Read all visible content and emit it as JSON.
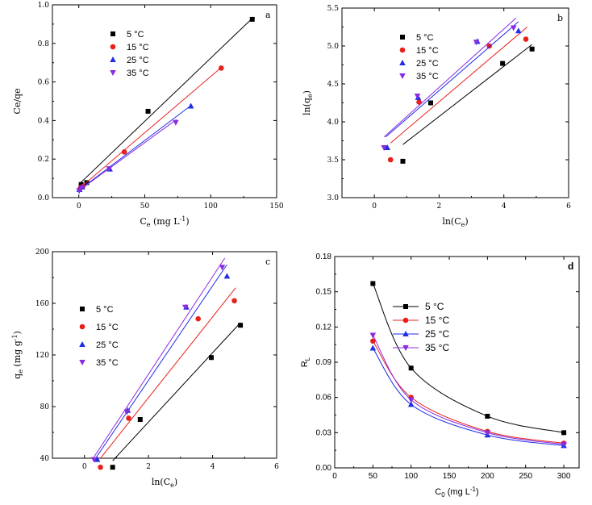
{
  "series_styles": [
    {
      "name": "5 °C",
      "color": "#000000",
      "marker": "square"
    },
    {
      "name": "15 °C",
      "color": "#e8201c",
      "marker": "circle"
    },
    {
      "name": "25 °C",
      "color": "#1e2ee6",
      "marker": "triangle-up"
    },
    {
      "name": "35 °C",
      "color": "#8a2be2",
      "marker": "triangle-down"
    }
  ],
  "chart_data": [
    {
      "type": "scatter",
      "panel_label": "a",
      "xlabel_main": "C",
      "xlabel_sub": "e",
      "xlabel_rest": " (mg L",
      "xlabel_sup": "-1",
      "xlabel_end": ")",
      "ylabel": "Ce/qe",
      "xlim": [
        -20,
        150
      ],
      "ylim": [
        0,
        1.0
      ],
      "xticks": [
        0,
        50,
        100,
        150
      ],
      "yticks": [
        0.0,
        0.2,
        0.4,
        0.6,
        0.8,
        1.0
      ],
      "ytick_labels": [
        "0.0",
        "0.2",
        "0.4",
        "0.6",
        "0.8",
        "1.0"
      ],
      "legend_position": "top-left",
      "series": [
        {
          "name": "5 °C",
          "x": [
            1.8,
            6.0,
            52.5,
            131.5
          ],
          "y": [
            0.068,
            0.078,
            0.448,
            0.925
          ],
          "fit": [
            [
              1.0,
              0.075
            ],
            [
              131.5,
              0.93
            ]
          ]
        },
        {
          "name": "15 °C",
          "x": [
            1.2,
            3.0,
            34.5,
            108.0
          ],
          "y": [
            0.05,
            0.058,
            0.237,
            0.672
          ],
          "fit": [
            [
              0.5,
              0.048
            ],
            [
              108.5,
              0.678
            ]
          ]
        },
        {
          "name": "25 °C",
          "x": [
            0.5,
            2.5,
            23.5,
            85.0
          ],
          "y": [
            0.042,
            0.055,
            0.148,
            0.475
          ],
          "fit": [
            [
              0.0,
              0.038
            ],
            [
              85.5,
              0.48
            ]
          ]
        },
        {
          "name": "35 °C",
          "x": [
            0.3,
            2.0,
            23.0,
            73.5
          ],
          "y": [
            0.036,
            0.05,
            0.15,
            0.39
          ],
          "fit": [
            [
              0.0,
              0.036
            ],
            [
              74.0,
              0.405
            ]
          ]
        }
      ]
    },
    {
      "type": "scatter",
      "panel_label": "b",
      "xlabel_main": "ln(C",
      "xlabel_sub": "e",
      "xlabel_rest": ")",
      "xlabel_sup": "",
      "xlabel_end": "",
      "ylabel": "ln(q",
      "ylabel_sub": "e",
      "ylabel_end": ")",
      "xlim": [
        -1,
        6
      ],
      "ylim": [
        3.0,
        5.5
      ],
      "xticks": [
        0,
        2,
        4,
        6
      ],
      "yticks": [
        3.0,
        3.5,
        4.0,
        4.5,
        5.0,
        5.5
      ],
      "ytick_labels": [
        "3.0",
        "3.5",
        "4.0",
        "4.5",
        "5.0",
        "5.5"
      ],
      "legend_position": "top-left",
      "series": [
        {
          "name": "5 °C",
          "x": [
            0.88,
            1.74,
            3.96,
            4.87
          ],
          "y": [
            3.48,
            4.25,
            4.77,
            4.96
          ],
          "fit": [
            [
              0.88,
              3.7
            ],
            [
              4.87,
              5.02
            ]
          ]
        },
        {
          "name": "15 °C",
          "x": [
            0.5,
            1.38,
            3.55,
            4.68
          ],
          "y": [
            3.5,
            4.26,
            5.0,
            5.09
          ],
          "fit": [
            [
              0.5,
              3.72
            ],
            [
              4.72,
              5.25
            ]
          ]
        },
        {
          "name": "25 °C",
          "x": [
            0.4,
            1.35,
            3.18,
            4.45
          ],
          "y": [
            3.66,
            4.32,
            5.06,
            5.2
          ],
          "fit": [
            [
              0.35,
              3.8
            ],
            [
              4.45,
              5.32
            ]
          ]
        },
        {
          "name": "35 °C",
          "x": [
            0.3,
            1.33,
            3.15,
            4.3
          ],
          "y": [
            3.66,
            4.34,
            5.05,
            5.24
          ],
          "fit": [
            [
              0.3,
              3.8
            ],
            [
              4.38,
              5.37
            ]
          ]
        }
      ]
    },
    {
      "type": "scatter",
      "panel_label": "c",
      "xlabel_main": "ln(C",
      "xlabel_sub": "e",
      "xlabel_rest": ")",
      "xlabel_sup": "",
      "xlabel_end": "",
      "ylabel": "q",
      "ylabel_sub": "e",
      "ylabel_end": " (mg g",
      "ylabel_sup": "-1",
      "ylabel_close": ")",
      "xlim": [
        -1,
        6
      ],
      "ylim": [
        40,
        200
      ],
      "xticks": [
        0,
        2,
        4,
        6
      ],
      "yticks": [
        40,
        80,
        120,
        160,
        200
      ],
      "ytick_labels": [
        "40",
        "80",
        "120",
        "160",
        "200"
      ],
      "legend_position": "center-left",
      "series": [
        {
          "name": "5 °C",
          "x": [
            0.88,
            1.74,
            3.96,
            4.87
          ],
          "y": [
            33,
            70,
            118,
            143
          ],
          "fit": [
            [
              0.88,
              38
            ],
            [
              4.87,
              145
            ]
          ]
        },
        {
          "name": "15 °C",
          "x": [
            0.5,
            1.38,
            3.55,
            4.68
          ],
          "y": [
            33,
            71,
            148,
            162
          ],
          "fit": [
            [
              0.5,
              40
            ],
            [
              4.72,
              172
            ]
          ]
        },
        {
          "name": "25 °C",
          "x": [
            0.4,
            1.35,
            3.18,
            4.45
          ],
          "y": [
            39,
            77,
            157,
            181
          ],
          "fit": [
            [
              0.35,
              40
            ],
            [
              4.45,
              190
            ]
          ]
        },
        {
          "name": "35 °C",
          "x": [
            0.3,
            1.33,
            3.15,
            4.3
          ],
          "y": [
            39,
            76,
            157,
            188
          ],
          "fit": [
            [
              0.3,
              41
            ],
            [
              4.38,
              195
            ]
          ]
        }
      ]
    },
    {
      "type": "line",
      "panel_label": "d",
      "xlabel_main": "C",
      "xlabel_sub": "0",
      "xlabel_rest": " (mg L",
      "xlabel_sup": "-1",
      "xlabel_end": ")",
      "ylabel": "R",
      "ylabel_sub": "L",
      "xlim": [
        0,
        320
      ],
      "ylim": [
        0.0,
        0.18
      ],
      "xticks": [
        0,
        50,
        100,
        150,
        200,
        250,
        300
      ],
      "yticks": [
        0.0,
        0.03,
        0.06,
        0.09,
        0.12,
        0.15,
        0.18
      ],
      "ytick_labels": [
        "0.00",
        "0.03",
        "0.06",
        "0.09",
        "0.12",
        "0.15",
        "0.18"
      ],
      "legend_position": "upper-center",
      "categories": [
        50,
        100,
        200,
        300
      ],
      "series": [
        {
          "name": "5 °C",
          "x": [
            50,
            100,
            200,
            300
          ],
          "y": [
            0.157,
            0.085,
            0.044,
            0.03
          ]
        },
        {
          "name": "15 °C",
          "x": [
            50,
            100,
            200,
            300
          ],
          "y": [
            0.108,
            0.06,
            0.031,
            0.021
          ]
        },
        {
          "name": "25 °C",
          "x": [
            50,
            100,
            200,
            300
          ],
          "y": [
            0.102,
            0.054,
            0.028,
            0.019
          ]
        },
        {
          "name": "35 °C",
          "x": [
            50,
            100,
            200,
            300
          ],
          "y": [
            0.113,
            0.058,
            0.03,
            0.02
          ]
        }
      ]
    }
  ]
}
